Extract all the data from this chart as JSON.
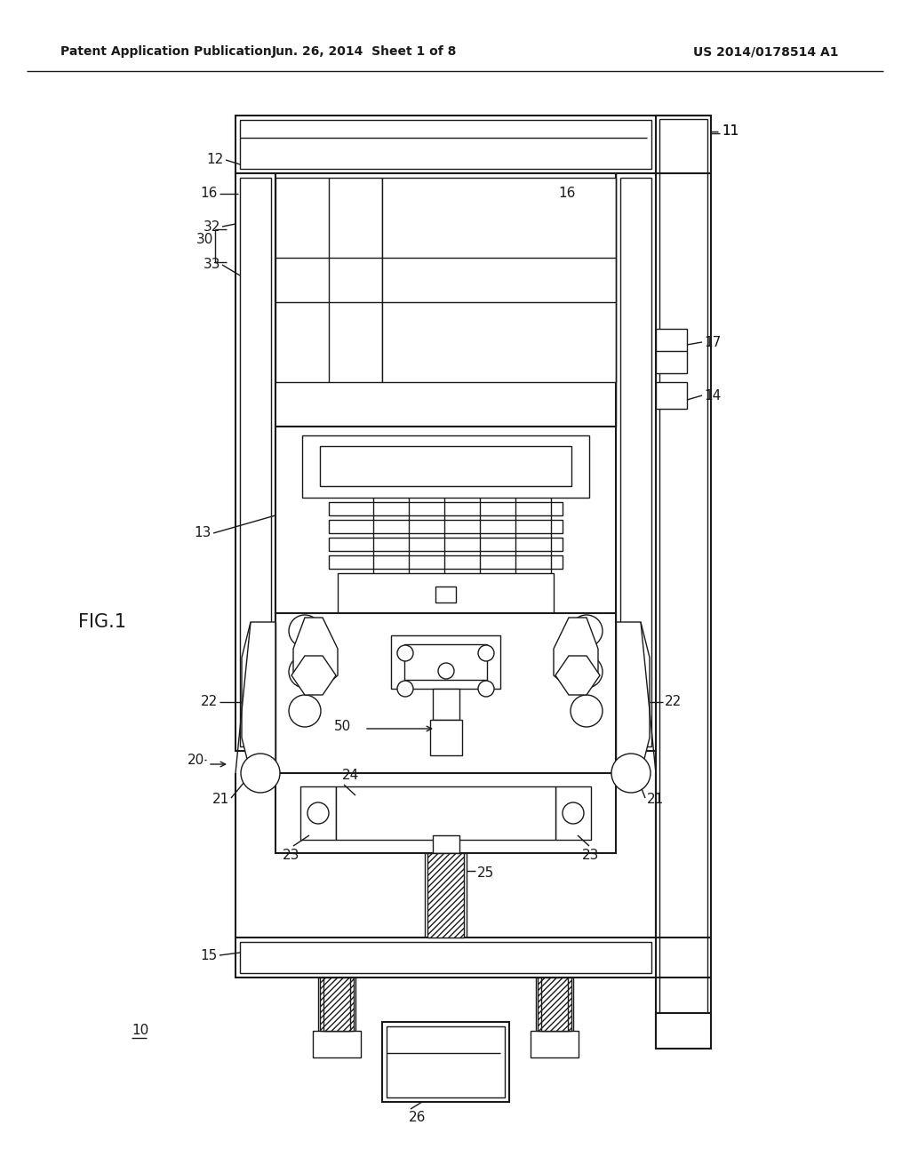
{
  "bg_color": "#ffffff",
  "line_color": "#1a1a1a",
  "header_left": "Patent Application Publication",
  "header_mid": "Jun. 26, 2014  Sheet 1 of 8",
  "header_right": "US 2014/0178514 A1",
  "fig_label": "FIG.1",
  "ref_num_10": "10",
  "ref_num_11": "11",
  "ref_num_12": "12",
  "ref_num_13": "13",
  "ref_num_14": "14",
  "ref_num_15": "15",
  "ref_num_16": "16",
  "ref_num_17": "17",
  "ref_num_20": "20",
  "ref_num_21": "21",
  "ref_num_22": "22",
  "ref_num_23": "23",
  "ref_num_24": "24",
  "ref_num_25": "25",
  "ref_num_26": "26",
  "ref_num_30": "30",
  "ref_num_32": "32",
  "ref_num_33": "33",
  "ref_num_50": "50"
}
